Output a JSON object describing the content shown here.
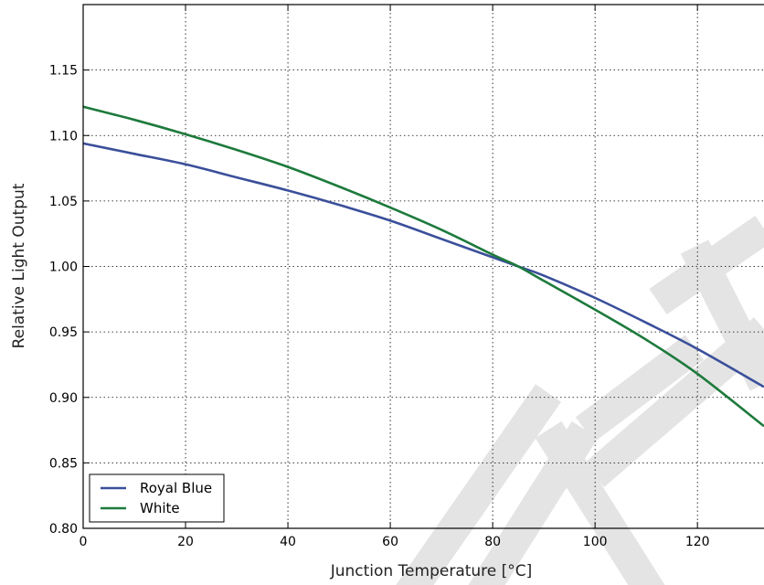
{
  "chart_data": {
    "type": "line",
    "xlabel": "Junction Temperature [°C]",
    "ylabel": "Relative Light Output",
    "xlim": [
      0,
      133
    ],
    "ylim": [
      0.8,
      1.2
    ],
    "xticks": [
      0,
      20,
      40,
      60,
      80,
      100,
      120
    ],
    "yticks": [
      0.8,
      0.85,
      0.9,
      0.95,
      1.0,
      1.05,
      1.1,
      1.15
    ],
    "ytick_labels": [
      "0.80",
      "0.85",
      "0.90",
      "0.95",
      "1.00",
      "1.05",
      "1.10",
      "1.15"
    ],
    "grid": true,
    "legend_position": "lower-left",
    "series": [
      {
        "name": "Royal Blue",
        "color": "#3a4f9a",
        "x": [
          0,
          10,
          20,
          30,
          40,
          50,
          60,
          70,
          80,
          85,
          90,
          100,
          110,
          120,
          133
        ],
        "y": [
          1.094,
          1.086,
          1.078,
          1.068,
          1.058,
          1.047,
          1.035,
          1.021,
          1.007,
          1.0,
          0.993,
          0.976,
          0.957,
          0.937,
          0.908
        ]
      },
      {
        "name": "White",
        "color": "#1d7a3c",
        "x": [
          0,
          10,
          20,
          30,
          40,
          50,
          60,
          70,
          80,
          85,
          90,
          100,
          110,
          120,
          133
        ],
        "y": [
          1.122,
          1.112,
          1.101,
          1.089,
          1.076,
          1.061,
          1.045,
          1.028,
          1.009,
          1.0,
          0.989,
          0.967,
          0.944,
          0.918,
          0.878
        ]
      }
    ]
  },
  "watermark": "AMEND"
}
